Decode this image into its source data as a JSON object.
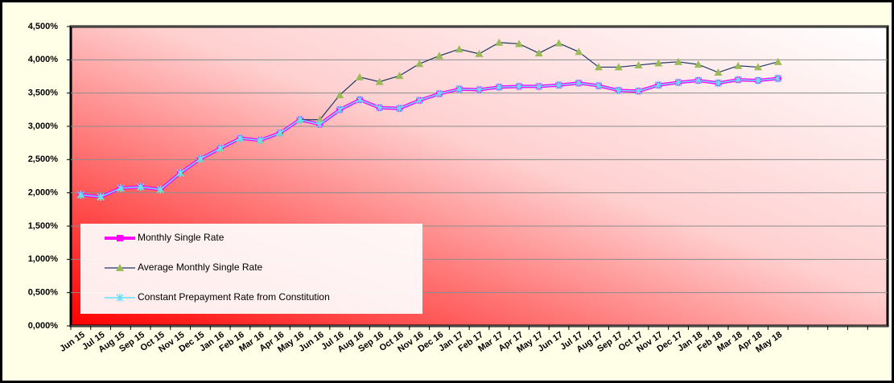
{
  "chart_data": {
    "type": "line",
    "categories": [
      "Jun 15",
      "Jul 15",
      "Aug 15",
      "Sep 15",
      "Oct 15",
      "Nov 15",
      "Dec 15",
      "Jan 16",
      "Feb 16",
      "Mar 16",
      "Apr 16",
      "May 16",
      "Jun 16",
      "Jul 16",
      "Aug 16",
      "Sep 16",
      "Oct 16",
      "Nov 16",
      "Dec 16",
      "Jan 17",
      "Feb 17",
      "Mar 17",
      "Apr 17",
      "May 17",
      "Jun 17",
      "Jul 17",
      "Aug 17",
      "Sep 17",
      "Oct 17",
      "Nov 17",
      "Dec 17",
      "Jan 18",
      "Feb 18",
      "Mar 18",
      "Apr 18",
      "May 18",
      null,
      null,
      null,
      null,
      null
    ],
    "series": [
      {
        "name": "Monthly Single Rate",
        "color": "#ff00ff",
        "marker": "square",
        "values": [
          1.97,
          1.94,
          2.07,
          2.09,
          2.05,
          2.3,
          2.51,
          2.67,
          2.82,
          2.79,
          2.9,
          3.1,
          3.03,
          3.25,
          3.4,
          3.28,
          3.27,
          3.39,
          3.49,
          3.56,
          3.55,
          3.59,
          3.6,
          3.6,
          3.62,
          3.65,
          3.61,
          3.54,
          3.53,
          3.62,
          3.66,
          3.69,
          3.65,
          3.7,
          3.69,
          3.72,
          null,
          null,
          null,
          null,
          null
        ]
      },
      {
        "name": "Average Monthly Single Rate",
        "color": "#1f3864",
        "marker": "triangle",
        "marker_color": "#9bbb59",
        "values": [
          1.97,
          1.94,
          2.07,
          2.09,
          2.05,
          2.3,
          2.51,
          2.67,
          2.82,
          2.79,
          2.9,
          3.1,
          3.1,
          3.47,
          3.74,
          3.67,
          3.76,
          3.94,
          4.06,
          4.16,
          4.09,
          4.26,
          4.24,
          4.1,
          4.25,
          4.12,
          3.89,
          3.89,
          3.92,
          3.95,
          3.97,
          3.93,
          3.81,
          3.91,
          3.89,
          3.97,
          null,
          null,
          null,
          null,
          null
        ]
      },
      {
        "name": "Constant Prepayment Rate from Constitution",
        "color": "#66e0ff",
        "marker": "x",
        "values": [
          1.97,
          1.94,
          2.07,
          2.09,
          2.05,
          2.3,
          2.51,
          2.67,
          2.82,
          2.79,
          2.9,
          3.1,
          3.03,
          3.25,
          3.4,
          3.28,
          3.27,
          3.39,
          3.49,
          3.56,
          3.55,
          3.59,
          3.6,
          3.6,
          3.62,
          3.65,
          3.61,
          3.54,
          3.53,
          3.62,
          3.66,
          3.69,
          3.65,
          3.7,
          3.69,
          3.72,
          null,
          null,
          null,
          null,
          null
        ]
      }
    ],
    "ylim": [
      0,
      4.5
    ],
    "yticks": [
      {
        "value": 0,
        "label": "0,000%"
      },
      {
        "value": 0.5,
        "label": "0,500%"
      },
      {
        "value": 1,
        "label": "1,000%"
      },
      {
        "value": 1.5,
        "label": "1,500%"
      },
      {
        "value": 2,
        "label": "2,000%"
      },
      {
        "value": 2.5,
        "label": "2,500%"
      },
      {
        "value": 3,
        "label": "3,000%"
      },
      {
        "value": 3.5,
        "label": "3,500%"
      },
      {
        "value": 4,
        "label": "4,000%"
      },
      {
        "value": 4.5,
        "label": "4,500%"
      }
    ],
    "grid": true,
    "legend": "lower left"
  }
}
